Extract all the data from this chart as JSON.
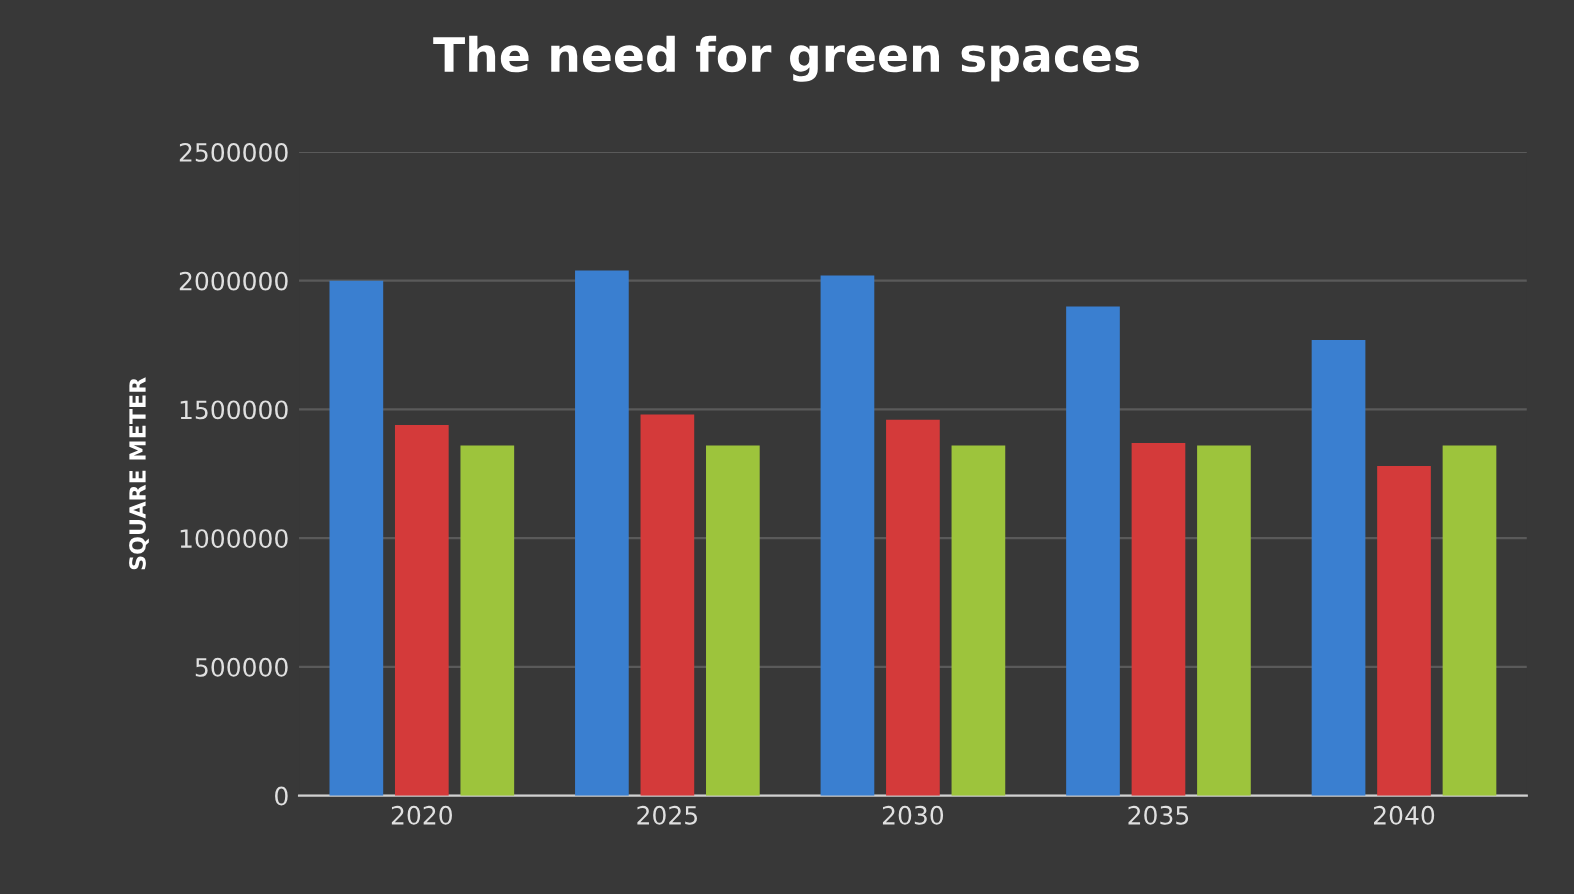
{
  "chart_data": {
    "type": "bar",
    "title": "The need for green spaces",
    "ylabel": "SQUARE METER",
    "categories": [
      "2020",
      "2025",
      "2030",
      "2035",
      "2040"
    ],
    "series": [
      {
        "color": "#3a7fd0",
        "values": [
          2000000,
          2040000,
          2020000,
          1900000,
          1770000
        ]
      },
      {
        "color": "#d43a3a",
        "values": [
          1440000,
          1480000,
          1460000,
          1370000,
          1280000
        ]
      },
      {
        "color": "#9dc43c",
        "values": [
          1360000,
          1360000,
          1360000,
          1360000,
          1360000
        ]
      }
    ],
    "ylim": [
      0,
      2500000
    ],
    "yticks": [
      0,
      500000,
      1000000,
      1500000,
      2000000,
      2500000
    ],
    "grid": "y"
  }
}
